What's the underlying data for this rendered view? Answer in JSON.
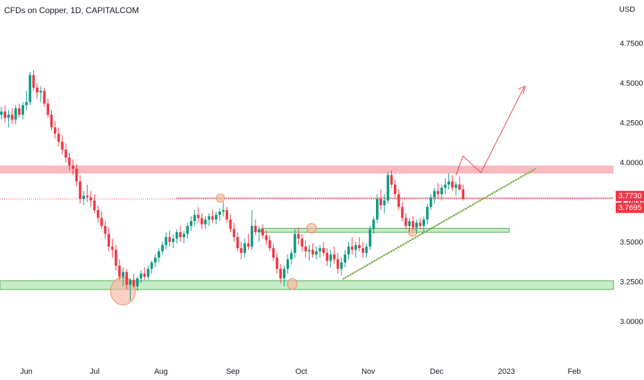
{
  "header": {
    "title": "CFDs on Copper, 1D, CAPITALCOM",
    "currency": "USD"
  },
  "chart_data": {
    "type": "candlestick",
    "title": "CFDs on Copper, 1D, CAPITALCOM",
    "y_ticks": [
      "4.7500",
      "4.5000",
      "4.2500",
      "4.0000",
      "3.7500",
      "3.5000",
      "3.2500",
      "3.0000"
    ],
    "y_tick_values": [
      4.75,
      4.5,
      4.25,
      4.0,
      3.75,
      3.5,
      3.25,
      3.0
    ],
    "x_ticks": [
      "Jun",
      "Jul",
      "Aug",
      "Sep",
      "Oct",
      "Nov",
      "Dec",
      "2023",
      "Feb"
    ],
    "ylim": [
      2.8,
      4.95
    ],
    "price_labels": [
      {
        "text": "3.7730",
        "value": 3.773,
        "color": "#f23645"
      },
      {
        "text": "3.7695",
        "value": 3.7695,
        "color": "#f23645"
      }
    ],
    "zones": [
      {
        "kind": "resistance",
        "low": 3.93,
        "high": 3.98,
        "color": "#f7a1a8"
      },
      {
        "kind": "support",
        "low": 3.56,
        "high": 3.585,
        "color": "#b9e6b9"
      },
      {
        "kind": "support",
        "low": 3.2,
        "high": 3.255,
        "color": "#b9e6b9"
      }
    ],
    "candles": [
      [
        4.3,
        4.35,
        4.27,
        4.32
      ],
      [
        4.32,
        4.36,
        4.25,
        4.28
      ],
      [
        4.28,
        4.33,
        4.22,
        4.3
      ],
      [
        4.3,
        4.34,
        4.24,
        4.27
      ],
      [
        4.27,
        4.36,
        4.24,
        4.34
      ],
      [
        4.34,
        4.37,
        4.28,
        4.3
      ],
      [
        4.3,
        4.38,
        4.27,
        4.36
      ],
      [
        4.36,
        4.45,
        4.33,
        4.38
      ],
      [
        4.38,
        4.57,
        4.36,
        4.55
      ],
      [
        4.55,
        4.58,
        4.45,
        4.47
      ],
      [
        4.47,
        4.5,
        4.4,
        4.44
      ],
      [
        4.44,
        4.48,
        4.38,
        4.45
      ],
      [
        4.45,
        4.47,
        4.35,
        4.37
      ],
      [
        4.37,
        4.4,
        4.28,
        4.3
      ],
      [
        4.3,
        4.33,
        4.2,
        4.22
      ],
      [
        4.22,
        4.26,
        4.15,
        4.18
      ],
      [
        4.18,
        4.22,
        4.1,
        4.13
      ],
      [
        4.13,
        4.17,
        4.05,
        4.08
      ],
      [
        4.08,
        4.12,
        4.0,
        4.03
      ],
      [
        4.03,
        4.06,
        3.95,
        3.98
      ],
      [
        3.98,
        4.02,
        3.92,
        3.96
      ],
      [
        3.96,
        3.99,
        3.85,
        3.88
      ],
      [
        3.88,
        3.92,
        3.74,
        3.77
      ],
      [
        3.77,
        3.82,
        3.73,
        3.79
      ],
      [
        3.79,
        3.86,
        3.75,
        3.78
      ],
      [
        3.78,
        3.82,
        3.72,
        3.76
      ],
      [
        3.76,
        3.8,
        3.68,
        3.7
      ],
      [
        3.7,
        3.73,
        3.62,
        3.65
      ],
      [
        3.65,
        3.69,
        3.58,
        3.6
      ],
      [
        3.6,
        3.63,
        3.52,
        3.55
      ],
      [
        3.55,
        3.59,
        3.44,
        3.47
      ],
      [
        3.47,
        3.52,
        3.4,
        3.45
      ],
      [
        3.45,
        3.48,
        3.32,
        3.35
      ],
      [
        3.35,
        3.39,
        3.26,
        3.28
      ],
      [
        3.28,
        3.34,
        3.22,
        3.31
      ],
      [
        3.31,
        3.33,
        3.2,
        3.23
      ],
      [
        3.23,
        3.27,
        3.13,
        3.26
      ],
      [
        3.26,
        3.3,
        3.21,
        3.22
      ],
      [
        3.22,
        3.28,
        3.19,
        3.27
      ],
      [
        3.27,
        3.32,
        3.24,
        3.3
      ],
      [
        3.3,
        3.34,
        3.26,
        3.28
      ],
      [
        3.28,
        3.35,
        3.26,
        3.33
      ],
      [
        3.33,
        3.38,
        3.3,
        3.37
      ],
      [
        3.37,
        3.42,
        3.34,
        3.4
      ],
      [
        3.4,
        3.46,
        3.37,
        3.44
      ],
      [
        3.44,
        3.5,
        3.42,
        3.48
      ],
      [
        3.48,
        3.56,
        3.45,
        3.53
      ],
      [
        3.53,
        3.57,
        3.47,
        3.5
      ],
      [
        3.5,
        3.55,
        3.46,
        3.52
      ],
      [
        3.52,
        3.58,
        3.49,
        3.56
      ],
      [
        3.56,
        3.6,
        3.5,
        3.53
      ],
      [
        3.53,
        3.57,
        3.49,
        3.55
      ],
      [
        3.55,
        3.62,
        3.52,
        3.6
      ],
      [
        3.6,
        3.66,
        3.57,
        3.63
      ],
      [
        3.63,
        3.7,
        3.6,
        3.67
      ],
      [
        3.67,
        3.72,
        3.62,
        3.65
      ],
      [
        3.65,
        3.68,
        3.58,
        3.61
      ],
      [
        3.61,
        3.66,
        3.58,
        3.64
      ],
      [
        3.64,
        3.68,
        3.6,
        3.66
      ],
      [
        3.66,
        3.7,
        3.62,
        3.64
      ],
      [
        3.64,
        3.69,
        3.61,
        3.67
      ],
      [
        3.67,
        3.71,
        3.63,
        3.69
      ],
      [
        3.69,
        3.75,
        3.66,
        3.7
      ],
      [
        3.7,
        3.72,
        3.62,
        3.64
      ],
      [
        3.64,
        3.67,
        3.56,
        3.58
      ],
      [
        3.58,
        3.62,
        3.5,
        3.53
      ],
      [
        3.53,
        3.56,
        3.44,
        3.46
      ],
      [
        3.46,
        3.5,
        3.39,
        3.43
      ],
      [
        3.43,
        3.52,
        3.4,
        3.49
      ],
      [
        3.49,
        3.55,
        3.45,
        3.47
      ],
      [
        3.47,
        3.7,
        3.45,
        3.6
      ],
      [
        3.6,
        3.64,
        3.54,
        3.56
      ],
      [
        3.56,
        3.6,
        3.5,
        3.58
      ],
      [
        3.58,
        3.61,
        3.52,
        3.54
      ],
      [
        3.54,
        3.57,
        3.48,
        3.51
      ],
      [
        3.51,
        3.54,
        3.44,
        3.46
      ],
      [
        3.46,
        3.49,
        3.38,
        3.4
      ],
      [
        3.4,
        3.43,
        3.3,
        3.33
      ],
      [
        3.33,
        3.36,
        3.24,
        3.27
      ],
      [
        3.27,
        3.35,
        3.22,
        3.33
      ],
      [
        3.33,
        3.42,
        3.3,
        3.39
      ],
      [
        3.39,
        3.45,
        3.36,
        3.43
      ],
      [
        3.43,
        3.58,
        3.4,
        3.55
      ],
      [
        3.55,
        3.59,
        3.48,
        3.52
      ],
      [
        3.52,
        3.55,
        3.44,
        3.47
      ],
      [
        3.47,
        3.51,
        3.4,
        3.44
      ],
      [
        3.44,
        3.48,
        3.38,
        3.45
      ],
      [
        3.45,
        3.49,
        3.4,
        3.42
      ],
      [
        3.42,
        3.47,
        3.39,
        3.44
      ],
      [
        3.44,
        3.48,
        3.4,
        3.46
      ],
      [
        3.46,
        3.5,
        3.41,
        3.43
      ],
      [
        3.43,
        3.46,
        3.35,
        3.38
      ],
      [
        3.38,
        3.45,
        3.34,
        3.42
      ],
      [
        3.42,
        3.47,
        3.36,
        3.39
      ],
      [
        3.39,
        3.43,
        3.3,
        3.33
      ],
      [
        3.33,
        3.4,
        3.29,
        3.37
      ],
      [
        3.37,
        3.45,
        3.34,
        3.42
      ],
      [
        3.42,
        3.5,
        3.39,
        3.47
      ],
      [
        3.47,
        3.53,
        3.42,
        3.45
      ],
      [
        3.45,
        3.5,
        3.4,
        3.48
      ],
      [
        3.48,
        3.53,
        3.44,
        3.46
      ],
      [
        3.46,
        3.5,
        3.4,
        3.43
      ],
      [
        3.43,
        3.49,
        3.4,
        3.47
      ],
      [
        3.47,
        3.6,
        3.45,
        3.58
      ],
      [
        3.58,
        3.66,
        3.55,
        3.64
      ],
      [
        3.64,
        3.8,
        3.62,
        3.77
      ],
      [
        3.77,
        3.83,
        3.7,
        3.73
      ],
      [
        3.73,
        3.8,
        3.68,
        3.76
      ],
      [
        3.76,
        3.94,
        3.74,
        3.92
      ],
      [
        3.92,
        3.95,
        3.84,
        3.86
      ],
      [
        3.86,
        3.89,
        3.78,
        3.8
      ],
      [
        3.8,
        3.83,
        3.7,
        3.72
      ],
      [
        3.72,
        3.75,
        3.63,
        3.65
      ],
      [
        3.65,
        3.68,
        3.58,
        3.6
      ],
      [
        3.6,
        3.65,
        3.56,
        3.63
      ],
      [
        3.63,
        3.66,
        3.57,
        3.59
      ],
      [
        3.59,
        3.64,
        3.55,
        3.62
      ],
      [
        3.62,
        3.65,
        3.58,
        3.6
      ],
      [
        3.6,
        3.66,
        3.56,
        3.64
      ],
      [
        3.64,
        3.74,
        3.61,
        3.72
      ],
      [
        3.72,
        3.8,
        3.7,
        3.78
      ],
      [
        3.78,
        3.84,
        3.74,
        3.82
      ],
      [
        3.82,
        3.87,
        3.77,
        3.8
      ],
      [
        3.8,
        3.86,
        3.76,
        3.84
      ],
      [
        3.84,
        3.9,
        3.8,
        3.86
      ],
      [
        3.86,
        3.93,
        3.83,
        3.88
      ],
      [
        3.88,
        3.92,
        3.82,
        3.84
      ],
      [
        3.84,
        3.88,
        3.79,
        3.86
      ],
      [
        3.86,
        3.91,
        3.82,
        3.83
      ],
      [
        3.83,
        3.86,
        3.76,
        3.77
      ]
    ]
  }
}
